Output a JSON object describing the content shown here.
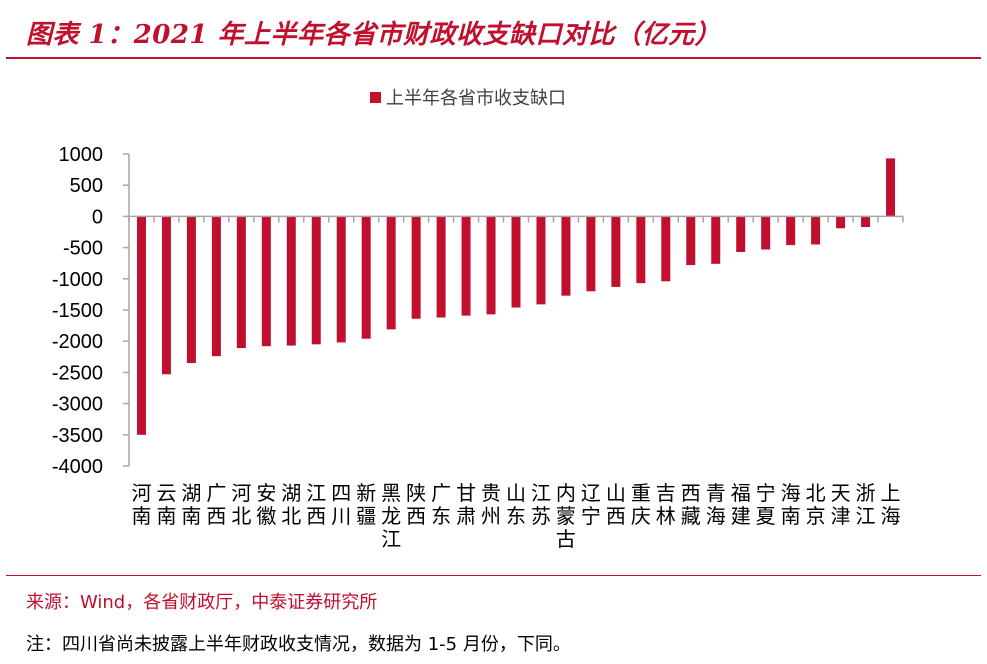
{
  "header": {
    "title": "图表 1：2021 年上半年各省市财政收支缺口对比（亿元）"
  },
  "footer": {
    "source": "来源：Wind，各省财政厅，中泰证券研究所",
    "note": "注：四川省尚未披露上半年财政收支情况，数据为 1-5 月份，下同。"
  },
  "colors": {
    "accent": "#c0102e",
    "bar": "#c0102e",
    "axis": "#a6a6a6"
  },
  "chart_data": {
    "type": "bar",
    "title": "",
    "xlabel": "",
    "ylabel": "",
    "legend": {
      "position": "top-center"
    },
    "grid": false,
    "ylim": [
      -4000,
      1000
    ],
    "yticks": [
      1000,
      500,
      0,
      -500,
      -1000,
      -1500,
      -2000,
      -2500,
      -3000,
      -3500,
      -4000
    ],
    "categories": [
      "河南",
      "云南",
      "湖南",
      "广西",
      "河北",
      "安徽",
      "湖北",
      "江西",
      "四川",
      "新疆",
      "黑龙江",
      "陕西",
      "广东",
      "甘肃",
      "贵州",
      "山东",
      "江苏",
      "内蒙古",
      "辽宁",
      "山西",
      "重庆",
      "吉林",
      "西藏",
      "青海",
      "福建",
      "宁夏",
      "海南",
      "北京",
      "天津",
      "浙江",
      "上海"
    ],
    "series": [
      {
        "name": "上半年各省市收支缺口",
        "values": [
          -3500,
          -2530,
          -2350,
          -2240,
          -2110,
          -2080,
          -2070,
          -2050,
          -2020,
          -1960,
          -1810,
          -1640,
          -1620,
          -1590,
          -1570,
          -1460,
          -1410,
          -1270,
          -1200,
          -1130,
          -1070,
          -1040,
          -780,
          -760,
          -570,
          -530,
          -460,
          -450,
          -190,
          -170,
          930
        ]
      }
    ]
  }
}
